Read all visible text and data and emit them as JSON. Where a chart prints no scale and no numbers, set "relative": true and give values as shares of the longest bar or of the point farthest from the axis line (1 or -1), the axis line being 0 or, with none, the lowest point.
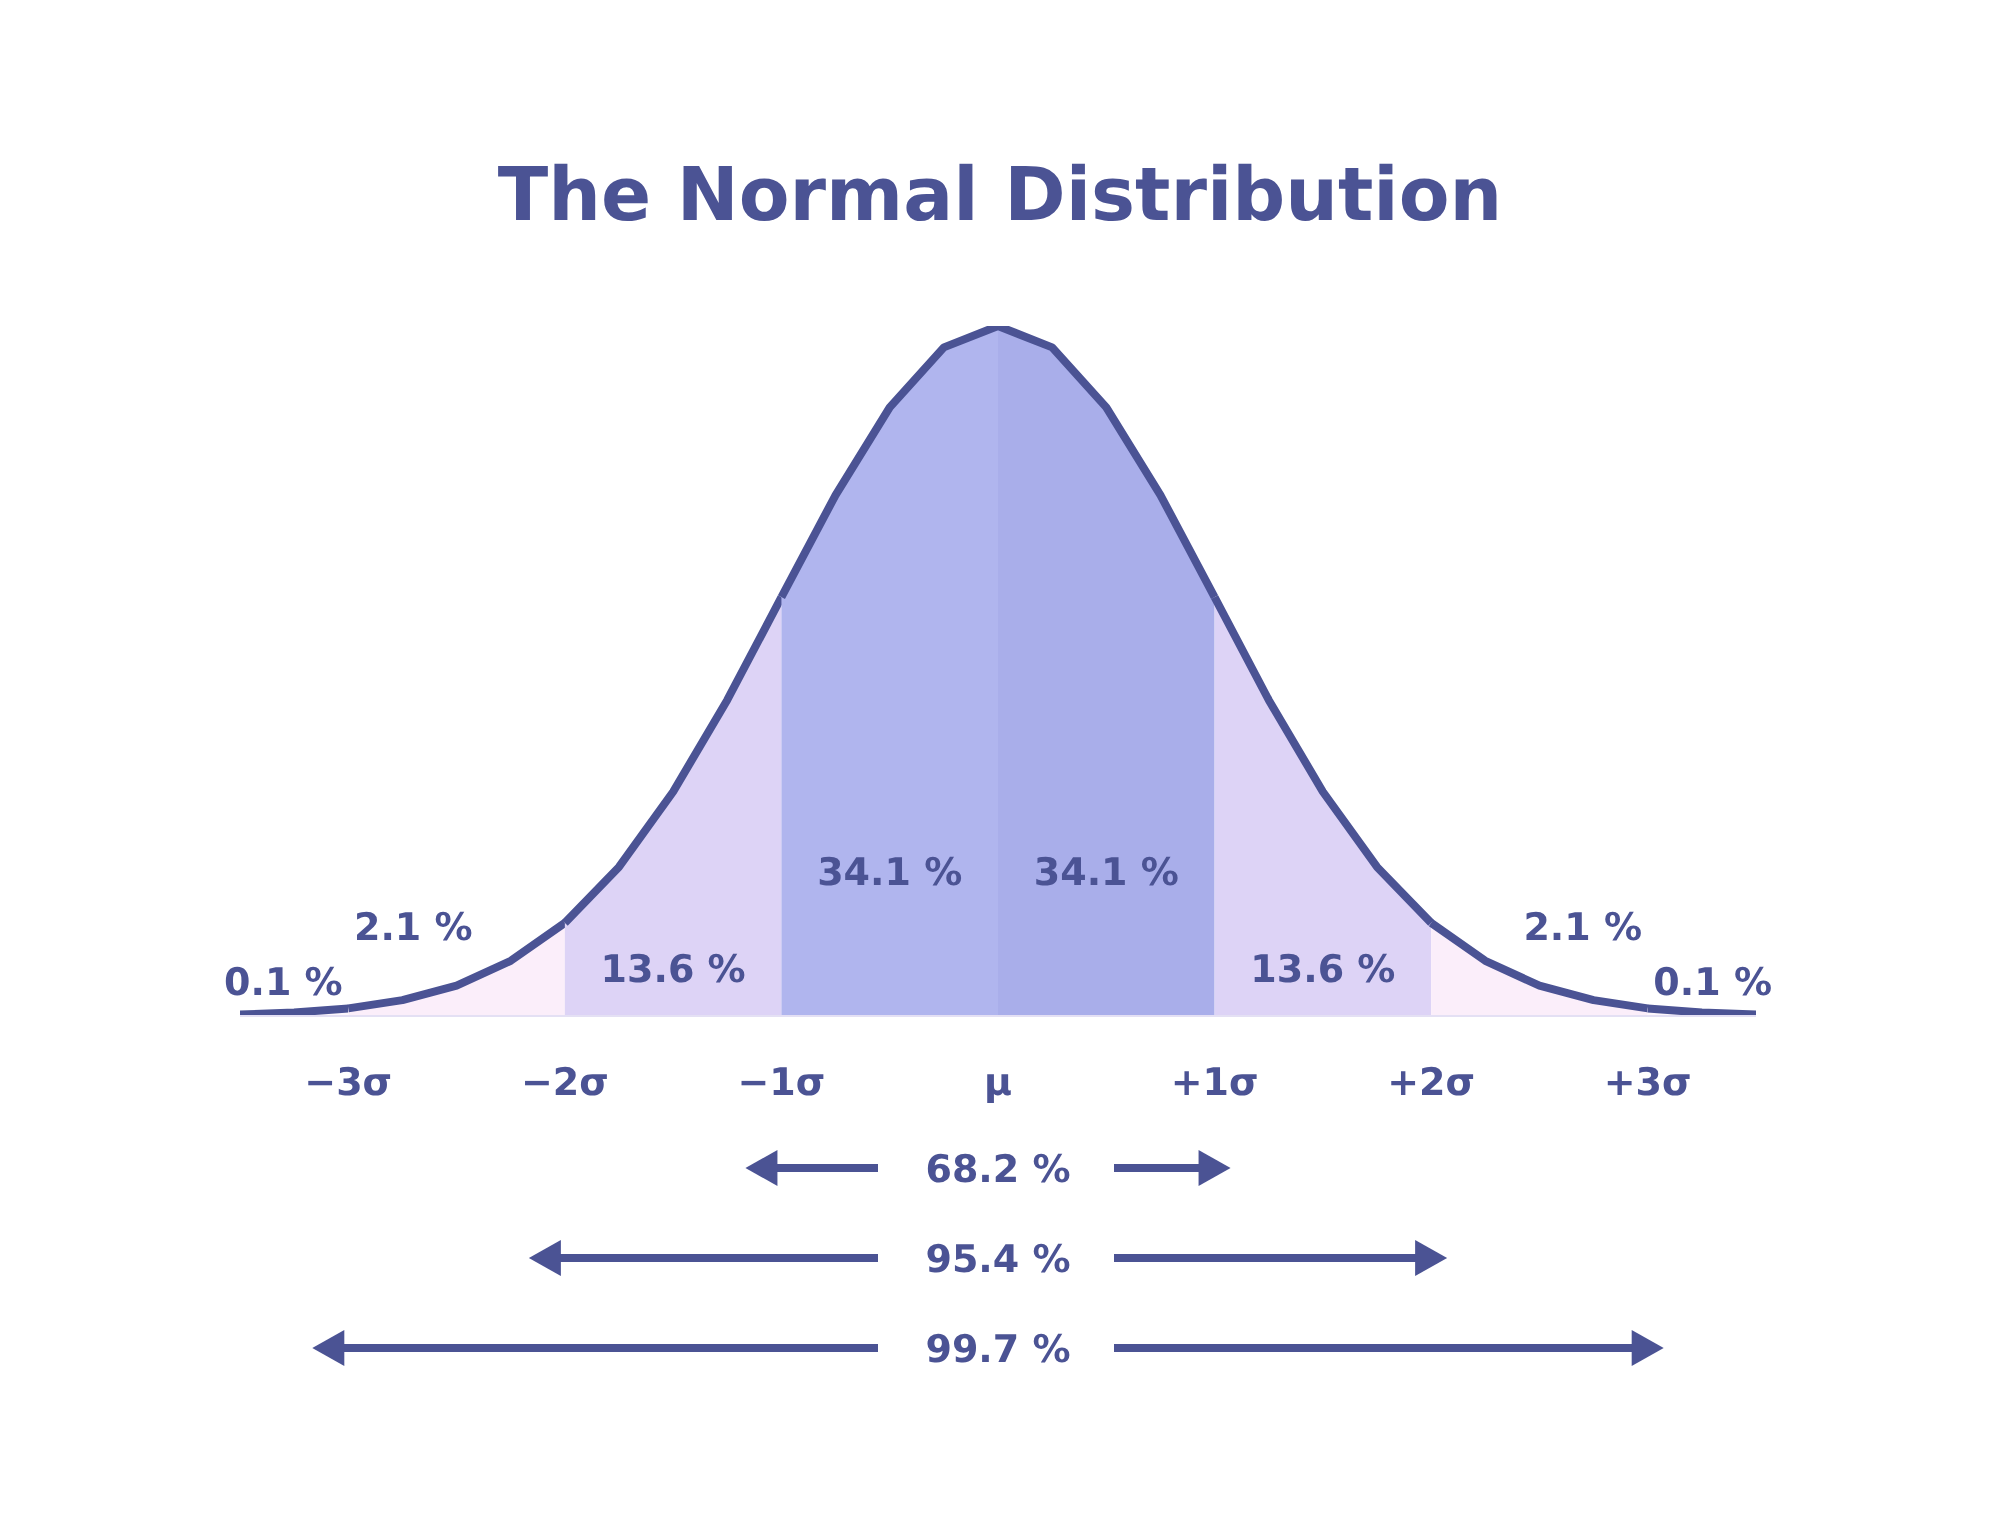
{
  "chart_data": {
    "type": "area",
    "title": "The Normal Distribution",
    "relative": true,
    "series": [
      {
        "name": "0.1 %",
        "color": "#fdf6fc",
        "x": [
          -3.5,
          -3.25,
          -3
        ],
        "values": [
          0.002,
          0.005,
          0.011
        ]
      },
      {
        "name": "2.1 %",
        "color": "#fbeefa",
        "x": [
          -3,
          -2.75,
          -2.5,
          -2.25,
          -2
        ],
        "values": [
          0.011,
          0.023,
          0.044,
          0.08,
          0.135
        ]
      },
      {
        "name": "13.6 %",
        "color": "#ddd3f6",
        "x": [
          -2,
          -1.75,
          -1.5,
          -1.25,
          -1
        ],
        "values": [
          0.135,
          0.216,
          0.325,
          0.458,
          0.607
        ]
      },
      {
        "name": "34.1 %",
        "color": "#b0b5ee",
        "x": [
          -1,
          -0.75,
          -0.5,
          -0.25,
          0
        ],
        "values": [
          0.607,
          0.755,
          0.882,
          0.969,
          1
        ]
      },
      {
        "name": "34.1 %",
        "color": "#a9aeea",
        "x": [
          0,
          0.25,
          0.5,
          0.75,
          1
        ],
        "values": [
          1,
          0.969,
          0.882,
          0.755,
          0.607
        ]
      },
      {
        "name": "13.6 %",
        "color": "#ddd3f6",
        "x": [
          1,
          1.25,
          1.5,
          1.75,
          2
        ],
        "values": [
          0.607,
          0.458,
          0.325,
          0.216,
          0.135
        ]
      },
      {
        "name": "2.1 %",
        "color": "#fbeefa",
        "x": [
          2,
          2.25,
          2.5,
          2.75,
          3
        ],
        "values": [
          0.135,
          0.08,
          0.044,
          0.023,
          0.011
        ]
      },
      {
        "name": "0.1 %",
        "color": "#fdf6fc",
        "x": [
          3,
          3.25,
          3.5
        ],
        "values": [
          0.011,
          0.005,
          0.002
        ]
      }
    ],
    "xlim": [
      -3.5,
      3.5
    ],
    "xticks": [
      {
        "value": -3,
        "label": "−3σ"
      },
      {
        "value": -2,
        "label": "−2σ"
      },
      {
        "value": -1,
        "label": "−1σ"
      },
      {
        "value": 0,
        "label": "μ"
      },
      {
        "value": 1,
        "label": "+1σ"
      },
      {
        "value": 2,
        "label": "+2σ"
      },
      {
        "value": 3,
        "label": "+3σ"
      }
    ],
    "annotations": [
      "68.2 %",
      "95.4 %",
      "99.7 %"
    ]
  }
}
